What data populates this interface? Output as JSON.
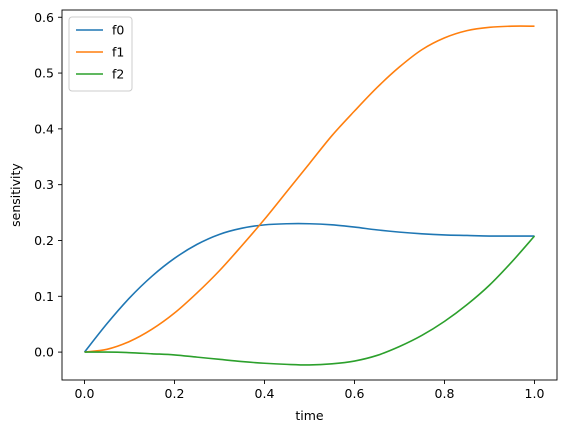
{
  "chart_data": {
    "type": "line",
    "xlabel": "time",
    "ylabel": "sensitivity",
    "xlim": [
      -0.05,
      1.05
    ],
    "ylim": [
      -0.05,
      0.613
    ],
    "xticks": [
      {
        "value": 0.0,
        "label": "0.0"
      },
      {
        "value": 0.2,
        "label": "0.2"
      },
      {
        "value": 0.4,
        "label": "0.4"
      },
      {
        "value": 0.6,
        "label": "0.6"
      },
      {
        "value": 0.8,
        "label": "0.8"
      },
      {
        "value": 1.0,
        "label": "1.0"
      }
    ],
    "yticks": [
      {
        "value": 0.0,
        "label": "0.0"
      },
      {
        "value": 0.1,
        "label": "0.1"
      },
      {
        "value": 0.2,
        "label": "0.2"
      },
      {
        "value": 0.3,
        "label": "0.3"
      },
      {
        "value": 0.4,
        "label": "0.4"
      },
      {
        "value": 0.5,
        "label": "0.5"
      },
      {
        "value": 0.6,
        "label": "0.6"
      }
    ],
    "grid": false,
    "legend_position": "upper-left",
    "x": [
      0.0,
      0.05,
      0.1,
      0.15,
      0.2,
      0.25,
      0.3,
      0.35,
      0.4,
      0.45,
      0.5,
      0.55,
      0.6,
      0.65,
      0.7,
      0.75,
      0.8,
      0.85,
      0.9,
      0.95,
      1.0
    ],
    "series": [
      {
        "name": "f0",
        "color": "#1f77b4",
        "values": [
          0.0,
          0.051,
          0.097,
          0.136,
          0.168,
          0.193,
          0.211,
          0.222,
          0.228,
          0.23,
          0.23,
          0.228,
          0.224,
          0.219,
          0.215,
          0.212,
          0.21,
          0.209,
          0.208,
          0.208,
          0.208
        ]
      },
      {
        "name": "f1",
        "color": "#ff7f0e",
        "values": [
          0.0,
          0.005,
          0.019,
          0.041,
          0.07,
          0.106,
          0.146,
          0.191,
          0.238,
          0.288,
          0.338,
          0.388,
          0.432,
          0.474,
          0.511,
          0.542,
          0.563,
          0.576,
          0.582,
          0.584,
          0.584
        ]
      },
      {
        "name": "f2",
        "color": "#2ca02c",
        "values": [
          0.0,
          0.0,
          -0.001,
          -0.003,
          -0.005,
          -0.009,
          -0.013,
          -0.017,
          -0.02,
          -0.022,
          -0.023,
          -0.021,
          -0.016,
          -0.006,
          0.01,
          0.03,
          0.055,
          0.085,
          0.12,
          0.162,
          0.208
        ]
      }
    ]
  }
}
